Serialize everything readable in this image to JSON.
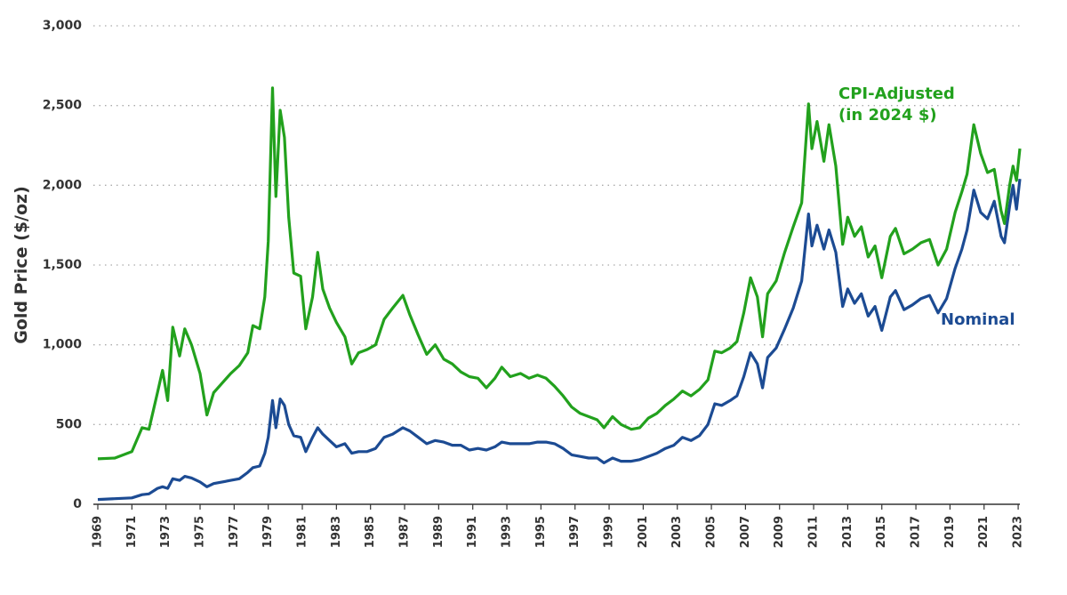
{
  "chart_data": {
    "type": "line",
    "y_label": "Gold Price ($/oz)",
    "x": [
      1969.0,
      1970.0,
      1971.0,
      1971.6,
      1972.0,
      1972.5,
      1972.8,
      1973.1,
      1973.4,
      1973.8,
      1974.1,
      1974.5,
      1975.0,
      1975.4,
      1975.8,
      1976.3,
      1976.8,
      1977.3,
      1977.8,
      1978.1,
      1978.5,
      1978.8,
      1979.0,
      1979.25,
      1979.45,
      1979.7,
      1979.95,
      1980.2,
      1980.5,
      1980.9,
      1981.2,
      1981.6,
      1981.9,
      1982.2,
      1982.6,
      1983.0,
      1983.5,
      1983.9,
      1984.3,
      1984.8,
      1985.3,
      1985.8,
      1986.3,
      1986.9,
      1987.3,
      1987.8,
      1988.3,
      1988.8,
      1989.3,
      1989.8,
      1990.3,
      1990.8,
      1991.3,
      1991.8,
      1992.3,
      1992.7,
      1993.2,
      1993.8,
      1994.3,
      1994.8,
      1995.3,
      1995.8,
      1996.3,
      1996.8,
      1997.3,
      1997.8,
      1998.3,
      1998.7,
      1999.2,
      1999.7,
      2000.3,
      2000.8,
      2001.3,
      2001.8,
      2002.3,
      2002.8,
      2003.3,
      2003.8,
      2004.3,
      2004.8,
      2005.2,
      2005.6,
      2006.1,
      2006.5,
      2006.9,
      2007.3,
      2007.7,
      2008.0,
      2008.3,
      2008.8,
      2009.3,
      2009.8,
      2010.3,
      2010.7,
      2010.9,
      2011.2,
      2011.6,
      2011.9,
      2012.3,
      2012.7,
      2013.0,
      2013.4,
      2013.8,
      2014.2,
      2014.6,
      2015.0,
      2015.5,
      2015.8,
      2016.3,
      2016.8,
      2017.3,
      2017.8,
      2018.3,
      2018.8,
      2019.3,
      2019.7,
      2020.0,
      2020.4,
      2020.8,
      2021.2,
      2021.6,
      2022.0,
      2022.2,
      2022.5,
      2022.7,
      2022.9,
      2023.1
    ],
    "series": [
      {
        "name": "Nominal",
        "color": "#1c4b93",
        "values": [
          30,
          35,
          40,
          60,
          65,
          100,
          110,
          100,
          160,
          150,
          175,
          165,
          140,
          110,
          130,
          140,
          150,
          160,
          200,
          230,
          240,
          320,
          420,
          650,
          480,
          660,
          620,
          500,
          430,
          420,
          330,
          420,
          480,
          440,
          400,
          360,
          380,
          320,
          330,
          330,
          350,
          420,
          440,
          480,
          460,
          420,
          380,
          400,
          390,
          370,
          370,
          340,
          350,
          340,
          360,
          390,
          380,
          380,
          380,
          390,
          390,
          380,
          350,
          310,
          300,
          290,
          290,
          260,
          290,
          270,
          270,
          280,
          300,
          320,
          350,
          370,
          420,
          400,
          430,
          500,
          630,
          620,
          650,
          680,
          800,
          950,
          880,
          730,
          920,
          980,
          1100,
          1230,
          1400,
          1820,
          1620,
          1750,
          1600,
          1720,
          1580,
          1240,
          1350,
          1260,
          1320,
          1180,
          1240,
          1090,
          1300,
          1340,
          1220,
          1250,
          1290,
          1310,
          1200,
          1290,
          1480,
          1600,
          1720,
          1970,
          1830,
          1790,
          1900,
          1680,
          1640,
          1870,
          2000,
          1850,
          2040
        ]
      },
      {
        "name": "CPI-Adjusted",
        "unit": "(in 2024 $)",
        "color": "#22a11d",
        "values": [
          285,
          290,
          330,
          480,
          470,
          700,
          840,
          650,
          1110,
          930,
          1100,
          1000,
          820,
          560,
          700,
          760,
          820,
          870,
          950,
          1120,
          1100,
          1300,
          1650,
          2610,
          1930,
          2470,
          2300,
          1800,
          1450,
          1430,
          1100,
          1300,
          1580,
          1350,
          1230,
          1140,
          1050,
          880,
          950,
          970,
          1000,
          1160,
          1230,
          1310,
          1190,
          1060,
          940,
          1000,
          910,
          880,
          830,
          800,
          790,
          730,
          790,
          860,
          800,
          820,
          790,
          810,
          790,
          740,
          680,
          610,
          570,
          550,
          530,
          480,
          550,
          500,
          470,
          480,
          540,
          570,
          620,
          660,
          710,
          680,
          720,
          780,
          960,
          950,
          980,
          1020,
          1200,
          1420,
          1300,
          1050,
          1320,
          1400,
          1580,
          1740,
          1890,
          2510,
          2230,
          2400,
          2150,
          2380,
          2120,
          1630,
          1800,
          1680,
          1740,
          1550,
          1620,
          1420,
          1680,
          1730,
          1570,
          1600,
          1640,
          1660,
          1500,
          1600,
          1830,
          1960,
          2070,
          2380,
          2200,
          2080,
          2100,
          1840,
          1760,
          2000,
          2120,
          2030,
          2230
        ]
      }
    ],
    "xlim": [
      1969,
      2023.1
    ],
    "xticks": [
      1969,
      1971,
      1973,
      1975,
      1977,
      1979,
      1981,
      1983,
      1985,
      1987,
      1989,
      1991,
      1993,
      1995,
      1997,
      1999,
      2001,
      2003,
      2005,
      2007,
      2009,
      2011,
      2013,
      2015,
      2017,
      2019,
      2021,
      2023
    ],
    "ylim": [
      0,
      3000
    ],
    "yticks": [
      0,
      500,
      {
        "value": 1000,
        "label": "1,000"
      },
      {
        "value": 1500,
        "label": "1,500"
      },
      {
        "value": 2000,
        "label": "2,000"
      },
      {
        "value": 2500,
        "label": "2,500"
      },
      {
        "value": 3000,
        "label": "3,000"
      }
    ],
    "grid": true
  }
}
